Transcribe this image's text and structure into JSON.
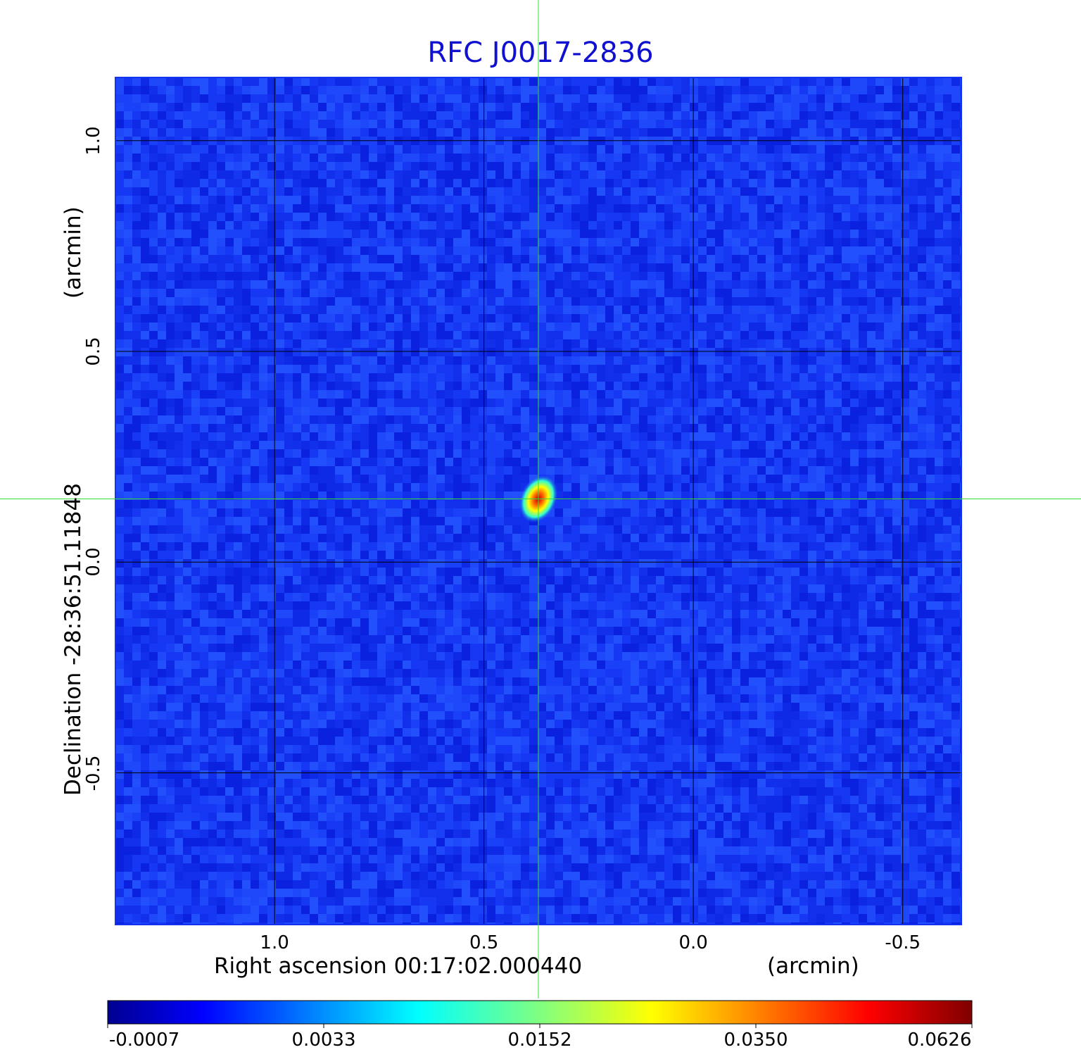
{
  "colors": {
    "title": "#1010d0",
    "background_map": "#1433f0",
    "grid": "#000000",
    "crosshair": "#33dd33"
  },
  "chart_data": {
    "type": "heatmap",
    "title": "RFC J0017-2836",
    "xlabel": "Right ascension  00:17:02.000440",
    "xunit": "(arcmin)",
    "ylabel": "Declination  -28:36:51.11848",
    "yunit": "(arcmin)",
    "x_ticks": [
      "1.0",
      "0.5",
      "0.0",
      "-0.5"
    ],
    "x_tick_values": [
      1.0,
      0.5,
      0.0,
      -0.5
    ],
    "y_ticks": [
      "1.0",
      "0.5",
      "0.0",
      "-0.5"
    ],
    "y_tick_values": [
      1.0,
      0.5,
      0.0,
      -0.5
    ],
    "xlim": [
      1.38,
      -0.64
    ],
    "ylim": [
      -0.86,
      1.15
    ],
    "grid": true,
    "colormap": "jet",
    "colorbar_ticks": [
      "-0.0007",
      "0.0033",
      "0.0152",
      "0.0350",
      "0.0626"
    ],
    "source_peak": {
      "x": 0.37,
      "y": 0.15,
      "value": 0.0626
    },
    "crosshair": {
      "x": 0.37,
      "y": 0.15
    }
  }
}
